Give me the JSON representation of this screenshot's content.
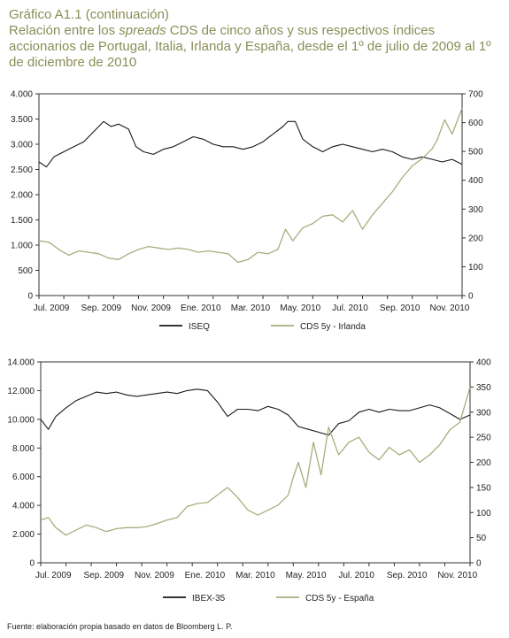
{
  "header": {
    "subtitle": "Gráfico A1.1 (continuación)",
    "title": "Relación entre los spreads CDS de cinco años y sus respectivos índices accionarios de Portugal, Italia, Irlanda y España, desde el 1º de julio de 2009 al 1º de diciembre de 2010"
  },
  "source": "Fuente: elaboración propia basado en datos de Bloomberg L. P.",
  "colors": {
    "index": "#1a1a1a",
    "cds": "#a9ad7d"
  },
  "chart_data": [
    {
      "type": "line",
      "x_tick_labels": [
        "Jul. 2009",
        "Sep. 2009",
        "Nov. 2009",
        "Ene. 2010",
        "Mar. 2010",
        "May. 2010",
        "Jul. 2010",
        "Sep. 2010",
        "Nov. 2010"
      ],
      "x_tick_positions": [
        0.5,
        2.5,
        4.5,
        6.5,
        8.5,
        10.5,
        12.5,
        14.5,
        16.5
      ],
      "x_range": [
        0,
        17
      ],
      "y_left": {
        "range": [
          0,
          4000
        ],
        "tick_values": [
          0,
          500,
          1000,
          1500,
          2000,
          2500,
          3000,
          3500,
          4000
        ],
        "tick_labels": [
          "0",
          "500",
          "1.000",
          "1.500",
          "2.000",
          "2.500",
          "3.000",
          "3.500",
          "4.000"
        ]
      },
      "y_right": {
        "range": [
          0,
          700
        ],
        "tick_values": [
          0,
          100,
          200,
          300,
          400,
          500,
          600,
          700
        ],
        "tick_labels": [
          "0",
          "100",
          "200",
          "300",
          "400",
          "500",
          "600",
          "700"
        ]
      },
      "grid": false,
      "legend_position": "bottom",
      "series": [
        {
          "name": "ISEQ",
          "axis": "left",
          "color": "#1a1a1a",
          "x": [
            0,
            0.3,
            0.6,
            1.0,
            1.4,
            1.8,
            2.2,
            2.6,
            2.9,
            3.2,
            3.6,
            3.9,
            4.2,
            4.6,
            5.0,
            5.4,
            5.8,
            6.2,
            6.6,
            7.0,
            7.4,
            7.8,
            8.2,
            8.6,
            9.0,
            9.4,
            9.8,
            10.0,
            10.3,
            10.6,
            11.0,
            11.4,
            11.8,
            12.2,
            12.6,
            13.0,
            13.4,
            13.8,
            14.2,
            14.6,
            15.0,
            15.4,
            15.8,
            16.2,
            16.6,
            17.0
          ],
          "y": [
            2650,
            2550,
            2750,
            2850,
            2950,
            3050,
            3250,
            3450,
            3350,
            3400,
            3300,
            2950,
            2850,
            2800,
            2900,
            2950,
            3050,
            3150,
            3100,
            3000,
            2950,
            2950,
            2900,
            2950,
            3050,
            3200,
            3350,
            3450,
            3450,
            3100,
            2950,
            2850,
            2950,
            3000,
            2950,
            2900,
            2850,
            2900,
            2850,
            2750,
            2700,
            2750,
            2700,
            2650,
            2700,
            2600
          ]
        },
        {
          "name": "CDS 5y - Irlanda",
          "axis": "right",
          "color": "#a9ad7d",
          "x": [
            0,
            0.4,
            0.8,
            1.2,
            1.6,
            2.0,
            2.4,
            2.8,
            3.2,
            3.6,
            4.0,
            4.4,
            4.8,
            5.2,
            5.6,
            6.0,
            6.4,
            6.8,
            7.2,
            7.6,
            8.0,
            8.4,
            8.8,
            9.2,
            9.6,
            9.9,
            10.2,
            10.6,
            11.0,
            11.4,
            11.8,
            12.2,
            12.6,
            13.0,
            13.4,
            13.8,
            14.2,
            14.6,
            15.0,
            15.4,
            15.8,
            16.0,
            16.3,
            16.6,
            17.0
          ],
          "y": [
            190,
            185,
            160,
            140,
            155,
            150,
            145,
            130,
            125,
            145,
            160,
            170,
            165,
            160,
            165,
            160,
            150,
            155,
            150,
            145,
            115,
            125,
            150,
            145,
            160,
            230,
            190,
            235,
            250,
            275,
            280,
            255,
            295,
            230,
            280,
            320,
            360,
            410,
            450,
            475,
            510,
            540,
            610,
            560,
            650
          ]
        }
      ]
    },
    {
      "type": "line",
      "x_tick_labels": [
        "Jul. 2009",
        "Sep. 2009",
        "Nov. 2009",
        "Ene. 2010",
        "Mar. 2010",
        "May. 2010",
        "Jul. 2010",
        "Sep. 2010",
        "Nov. 2010"
      ],
      "x_tick_positions": [
        0.5,
        2.5,
        4.5,
        6.5,
        8.5,
        10.5,
        12.5,
        14.5,
        16.5
      ],
      "x_range": [
        0,
        17
      ],
      "y_left": {
        "range": [
          0,
          14000
        ],
        "tick_values": [
          0,
          2000,
          4000,
          6000,
          8000,
          10000,
          12000,
          14000
        ],
        "tick_labels": [
          "0",
          "2.000",
          "4.000",
          "6.000",
          "8.000",
          "10.000",
          "12.000",
          "14.000"
        ]
      },
      "y_right": {
        "range": [
          0,
          400
        ],
        "tick_values": [
          0,
          50,
          100,
          150,
          200,
          250,
          300,
          350,
          400
        ],
        "tick_labels": [
          "0",
          "50",
          "100",
          "150",
          "200",
          "250",
          "300",
          "350",
          "400"
        ]
      },
      "grid": false,
      "legend_position": "bottom",
      "series": [
        {
          "name": "IBEX-35",
          "axis": "left",
          "color": "#1a1a1a",
          "x": [
            0,
            0.3,
            0.6,
            1.0,
            1.4,
            1.8,
            2.2,
            2.6,
            3.0,
            3.4,
            3.8,
            4.2,
            4.6,
            5.0,
            5.4,
            5.8,
            6.2,
            6.6,
            7.0,
            7.4,
            7.8,
            8.2,
            8.6,
            9.0,
            9.4,
            9.8,
            10.2,
            10.6,
            11.0,
            11.4,
            11.8,
            12.2,
            12.6,
            13.0,
            13.4,
            13.8,
            14.2,
            14.6,
            15.0,
            15.4,
            15.8,
            16.2,
            16.6,
            17.0
          ],
          "y": [
            10000,
            9300,
            10200,
            10800,
            11300,
            11600,
            11900,
            11800,
            11900,
            11700,
            11600,
            11700,
            11800,
            11900,
            11800,
            12000,
            12100,
            12000,
            11200,
            10200,
            10700,
            10700,
            10600,
            10900,
            10700,
            10300,
            9500,
            9300,
            9100,
            8900,
            9700,
            9900,
            10500,
            10700,
            10500,
            10700,
            10600,
            10600,
            10800,
            11000,
            10800,
            10400,
            10000,
            10300
          ]
        },
        {
          "name": "CDS 5y - España",
          "axis": "right",
          "color": "#a9ad7d",
          "x": [
            0,
            0.3,
            0.6,
            1.0,
            1.4,
            1.8,
            2.2,
            2.6,
            3.0,
            3.4,
            3.8,
            4.2,
            4.6,
            5.0,
            5.4,
            5.8,
            6.2,
            6.6,
            7.0,
            7.4,
            7.8,
            8.2,
            8.6,
            9.0,
            9.4,
            9.8,
            10.0,
            10.2,
            10.5,
            10.8,
            11.1,
            11.4,
            11.8,
            12.2,
            12.6,
            13.0,
            13.4,
            13.8,
            14.2,
            14.6,
            15.0,
            15.4,
            15.8,
            16.2,
            16.6,
            17.0
          ],
          "y": [
            85,
            90,
            70,
            55,
            65,
            75,
            70,
            62,
            68,
            70,
            70,
            72,
            78,
            85,
            90,
            112,
            118,
            120,
            135,
            150,
            130,
            105,
            95,
            105,
            115,
            135,
            170,
            200,
            150,
            240,
            175,
            270,
            215,
            240,
            250,
            220,
            205,
            230,
            215,
            225,
            200,
            215,
            235,
            265,
            280,
            350
          ]
        }
      ]
    }
  ]
}
